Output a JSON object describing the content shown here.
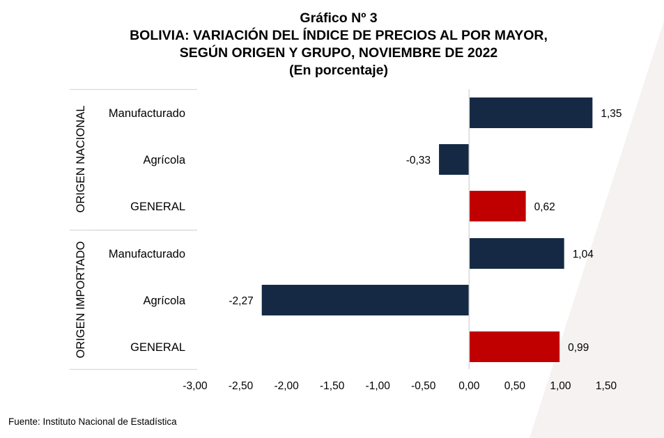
{
  "chart_title": {
    "line1": "Gráfico Nº 3",
    "line2": "BOLIVIA: VARIACIÓN DEL ÍNDICE DE PRECIOS AL POR MAYOR,",
    "line3": "SEGÚN ORIGEN Y GRUPO, NOVIEMBRE DE 2022",
    "line4": "(En porcentaje)"
  },
  "source": "Fuente: Instituto Nacional de Estadística",
  "colors": {
    "dark": "#152944",
    "red": "#C00000",
    "axis": "#d9d9d9"
  },
  "chart_data": {
    "type": "bar",
    "orientation": "horizontal",
    "xlim": [
      -3.0,
      1.5
    ],
    "x_ticks": [
      "-3,00",
      "-2,50",
      "-2,00",
      "-1,50",
      "-1,00",
      "-0,50",
      "0,00",
      "0,50",
      "1,00",
      "1,50"
    ],
    "groups": [
      {
        "name": "ORIGEN NACIONAL",
        "categories": [
          {
            "label": "Manufacturado",
            "value": 1.35,
            "value_label": "1,35",
            "color": "dark"
          },
          {
            "label": "Agrícola",
            "value": -0.33,
            "value_label": "-0,33",
            "color": "dark"
          },
          {
            "label": "GENERAL",
            "value": 0.62,
            "value_label": "0,62",
            "color": "red"
          }
        ]
      },
      {
        "name": "ORIGEN IMPORTADO",
        "categories": [
          {
            "label": "Manufacturado",
            "value": 1.04,
            "value_label": "1,04",
            "color": "dark"
          },
          {
            "label": "Agrícola",
            "value": -2.27,
            "value_label": "-2,27",
            "color": "dark"
          },
          {
            "label": "GENERAL",
            "value": 0.99,
            "value_label": "0,99",
            "color": "red"
          }
        ]
      }
    ],
    "grid": false,
    "legend": "none"
  }
}
